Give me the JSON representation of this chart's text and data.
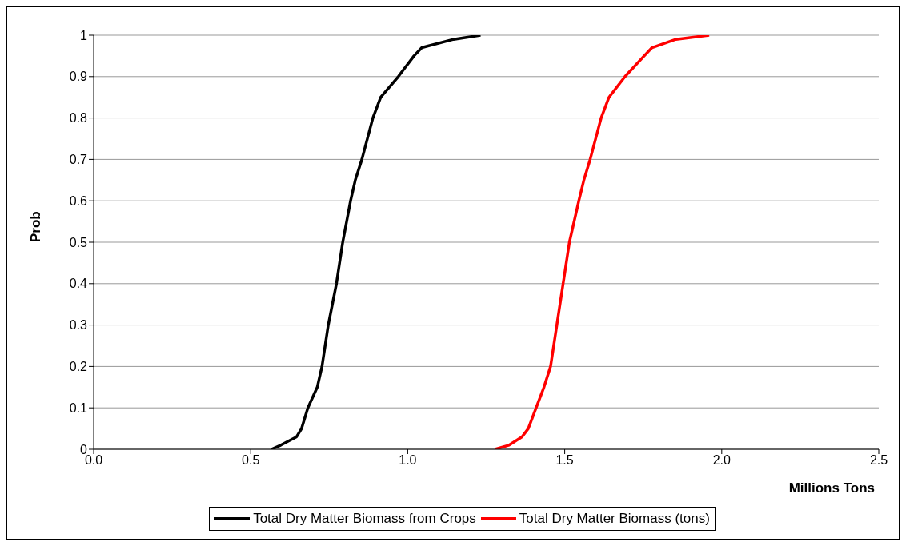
{
  "chart_data": {
    "type": "line",
    "xlabel": "Millions Tons",
    "ylabel": "Prob",
    "xlim": [
      0,
      2.5
    ],
    "xticks": [
      {
        "value": 0,
        "label": "0.0"
      },
      {
        "value": 0.5,
        "label": "0.5"
      },
      {
        "value": 1,
        "label": "1.0"
      },
      {
        "value": 1.5,
        "label": "1.5"
      },
      {
        "value": 2,
        "label": "2.0"
      },
      {
        "value": 2.5,
        "label": "2.5"
      }
    ],
    "ylim": [
      0,
      1
    ],
    "yticks": [
      0,
      0.1,
      0.2,
      0.3,
      0.4,
      0.5,
      0.6,
      0.7,
      0.8,
      0.9,
      1
    ],
    "grid": "y",
    "legend": "bottom",
    "marker": "none",
    "line_style": "solid",
    "series": [
      {
        "name": "Total Dry Matter Biomass from Crops",
        "color": "#000000",
        "x": [
          0.566,
          0.596,
          0.646,
          0.662,
          0.682,
          0.712,
          0.727,
          0.747,
          0.773,
          0.793,
          0.818,
          0.833,
          0.854,
          0.889,
          0.914,
          0.97,
          1.02,
          1.045,
          1.146,
          1.232
        ],
        "values": [
          0,
          0.01,
          0.03,
          0.05,
          0.1,
          0.15,
          0.2,
          0.3,
          0.4,
          0.5,
          0.6,
          0.65,
          0.7,
          0.8,
          0.85,
          0.9,
          0.95,
          0.97,
          0.99,
          1
        ]
      },
      {
        "name": "Total Dry Matter Biomass (tons)",
        "color": "#ff0000",
        "x": [
          1.278,
          1.323,
          1.364,
          1.384,
          1.409,
          1.434,
          1.455,
          1.475,
          1.495,
          1.515,
          1.545,
          1.561,
          1.581,
          1.616,
          1.641,
          1.692,
          1.753,
          1.778,
          1.854,
          1.96
        ],
        "values": [
          0,
          0.01,
          0.03,
          0.05,
          0.1,
          0.15,
          0.2,
          0.3,
          0.4,
          0.5,
          0.6,
          0.65,
          0.7,
          0.8,
          0.85,
          0.9,
          0.95,
          0.97,
          0.99,
          1
        ]
      }
    ]
  }
}
